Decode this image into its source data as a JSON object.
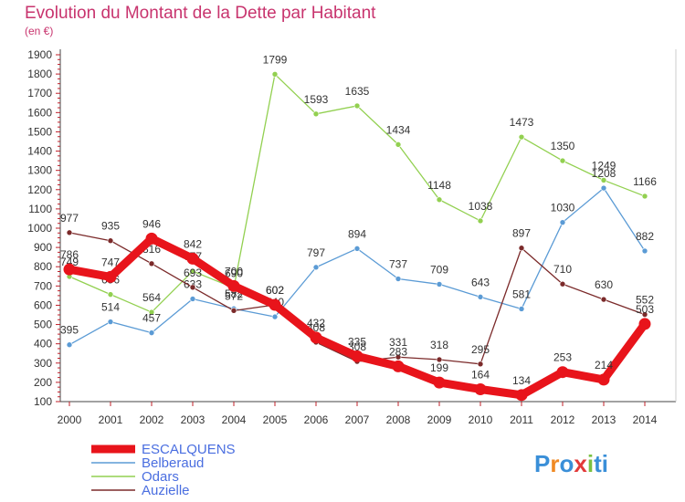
{
  "title": "Evolution du Montant de la Dette par Habitant",
  "unit": "(en €)",
  "brand": "Proxiti",
  "brand_colors": [
    "#3a8fd8",
    "#f08a24",
    "#3a8fd8",
    "#e23a3a",
    "#7bc142",
    "#3a8fd8"
  ],
  "chart_data": {
    "type": "line",
    "title": "Evolution du Montant de la Dette par Habitant",
    "ylabel": "(en €)",
    "xlabel": "",
    "x": [
      "2000",
      "2001",
      "2002",
      "2003",
      "2004",
      "2005",
      "2006",
      "2007",
      "2008",
      "2009",
      "2010",
      "2011",
      "2012",
      "2013",
      "2014"
    ],
    "ylim": [
      100,
      1900
    ],
    "yticks": [
      100,
      200,
      300,
      400,
      500,
      600,
      700,
      800,
      900,
      1000,
      1100,
      1200,
      1300,
      1400,
      1500,
      1600,
      1700,
      1800,
      1900
    ],
    "grid": false,
    "legend": "bottom-left",
    "series": [
      {
        "name": "ESCALQUENS",
        "color": "#e8141b",
        "values": [
          786,
          747,
          946,
          842,
          700,
          602,
          432,
          335,
          283,
          199,
          164,
          134,
          253,
          214,
          503
        ]
      },
      {
        "name": "Belberaud",
        "color": "#5b9bd5",
        "values": [
          395,
          514,
          457,
          633,
          582,
          540,
          797,
          894,
          737,
          709,
          643,
          581,
          1030,
          1208,
          882
        ]
      },
      {
        "name": "Odars",
        "color": "#92d050",
        "values": [
          749,
          656,
          564,
          777,
          690,
          1799,
          1593,
          1635,
          1434,
          1148,
          1038,
          1473,
          1350,
          1249,
          1166
        ]
      },
      {
        "name": "Auzielle",
        "color": "#7b2a2a",
        "values": [
          977,
          935,
          816,
          693,
          572,
          602,
          408,
          308,
          331,
          318,
          295,
          897,
          710,
          630,
          552
        ]
      }
    ]
  }
}
